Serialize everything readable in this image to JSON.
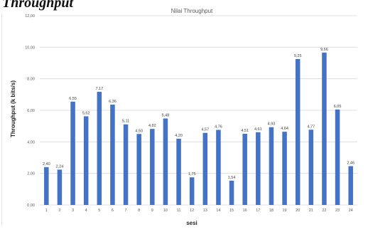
{
  "document": {
    "heading": "Throughput"
  },
  "chart_data": {
    "type": "bar",
    "title": "Nilai Throughput",
    "xlabel": "sesi",
    "ylabel": "Throughput (k bits/s)",
    "categories": [
      "1",
      "2",
      "3",
      "4",
      "5",
      "6",
      "7",
      "8",
      "9",
      "10",
      "11",
      "12",
      "13",
      "14",
      "15",
      "16",
      "17",
      "18",
      "19",
      "20",
      "21",
      "22",
      "23",
      "24"
    ],
    "values": [
      2.4,
      2.24,
      6.55,
      5.62,
      7.17,
      6.36,
      5.11,
      4.5,
      4.82,
      5.48,
      4.2,
      1.75,
      4.57,
      4.76,
      1.54,
      4.51,
      4.61,
      4.93,
      4.64,
      9.25,
      4.77,
      9.66,
      6.05,
      2.46
    ],
    "data_labels": [
      "2,40",
      "2,24",
      "6,55",
      "5,62",
      "7,17",
      "6,36",
      "5,11",
      "4,50",
      "4,82",
      "5,48",
      "4,20",
      "1,75",
      "4,57",
      "4,76",
      "1,54",
      "4,51",
      "4,61",
      "4,93",
      "4,64",
      "9,25",
      "4,77",
      "9,66",
      "6,05",
      "2,46"
    ],
    "y_ticks": [
      0,
      2,
      4,
      6,
      8,
      10,
      12
    ],
    "y_tick_labels": [
      "0,00",
      "2,00",
      "4,00",
      "6,00",
      "8,00",
      "10,00",
      "12,00"
    ],
    "ylim": [
      0,
      12
    ],
    "grid": true,
    "legend": "none",
    "bar_color": "#4472c4",
    "grid_color": "#d9d9d9"
  }
}
